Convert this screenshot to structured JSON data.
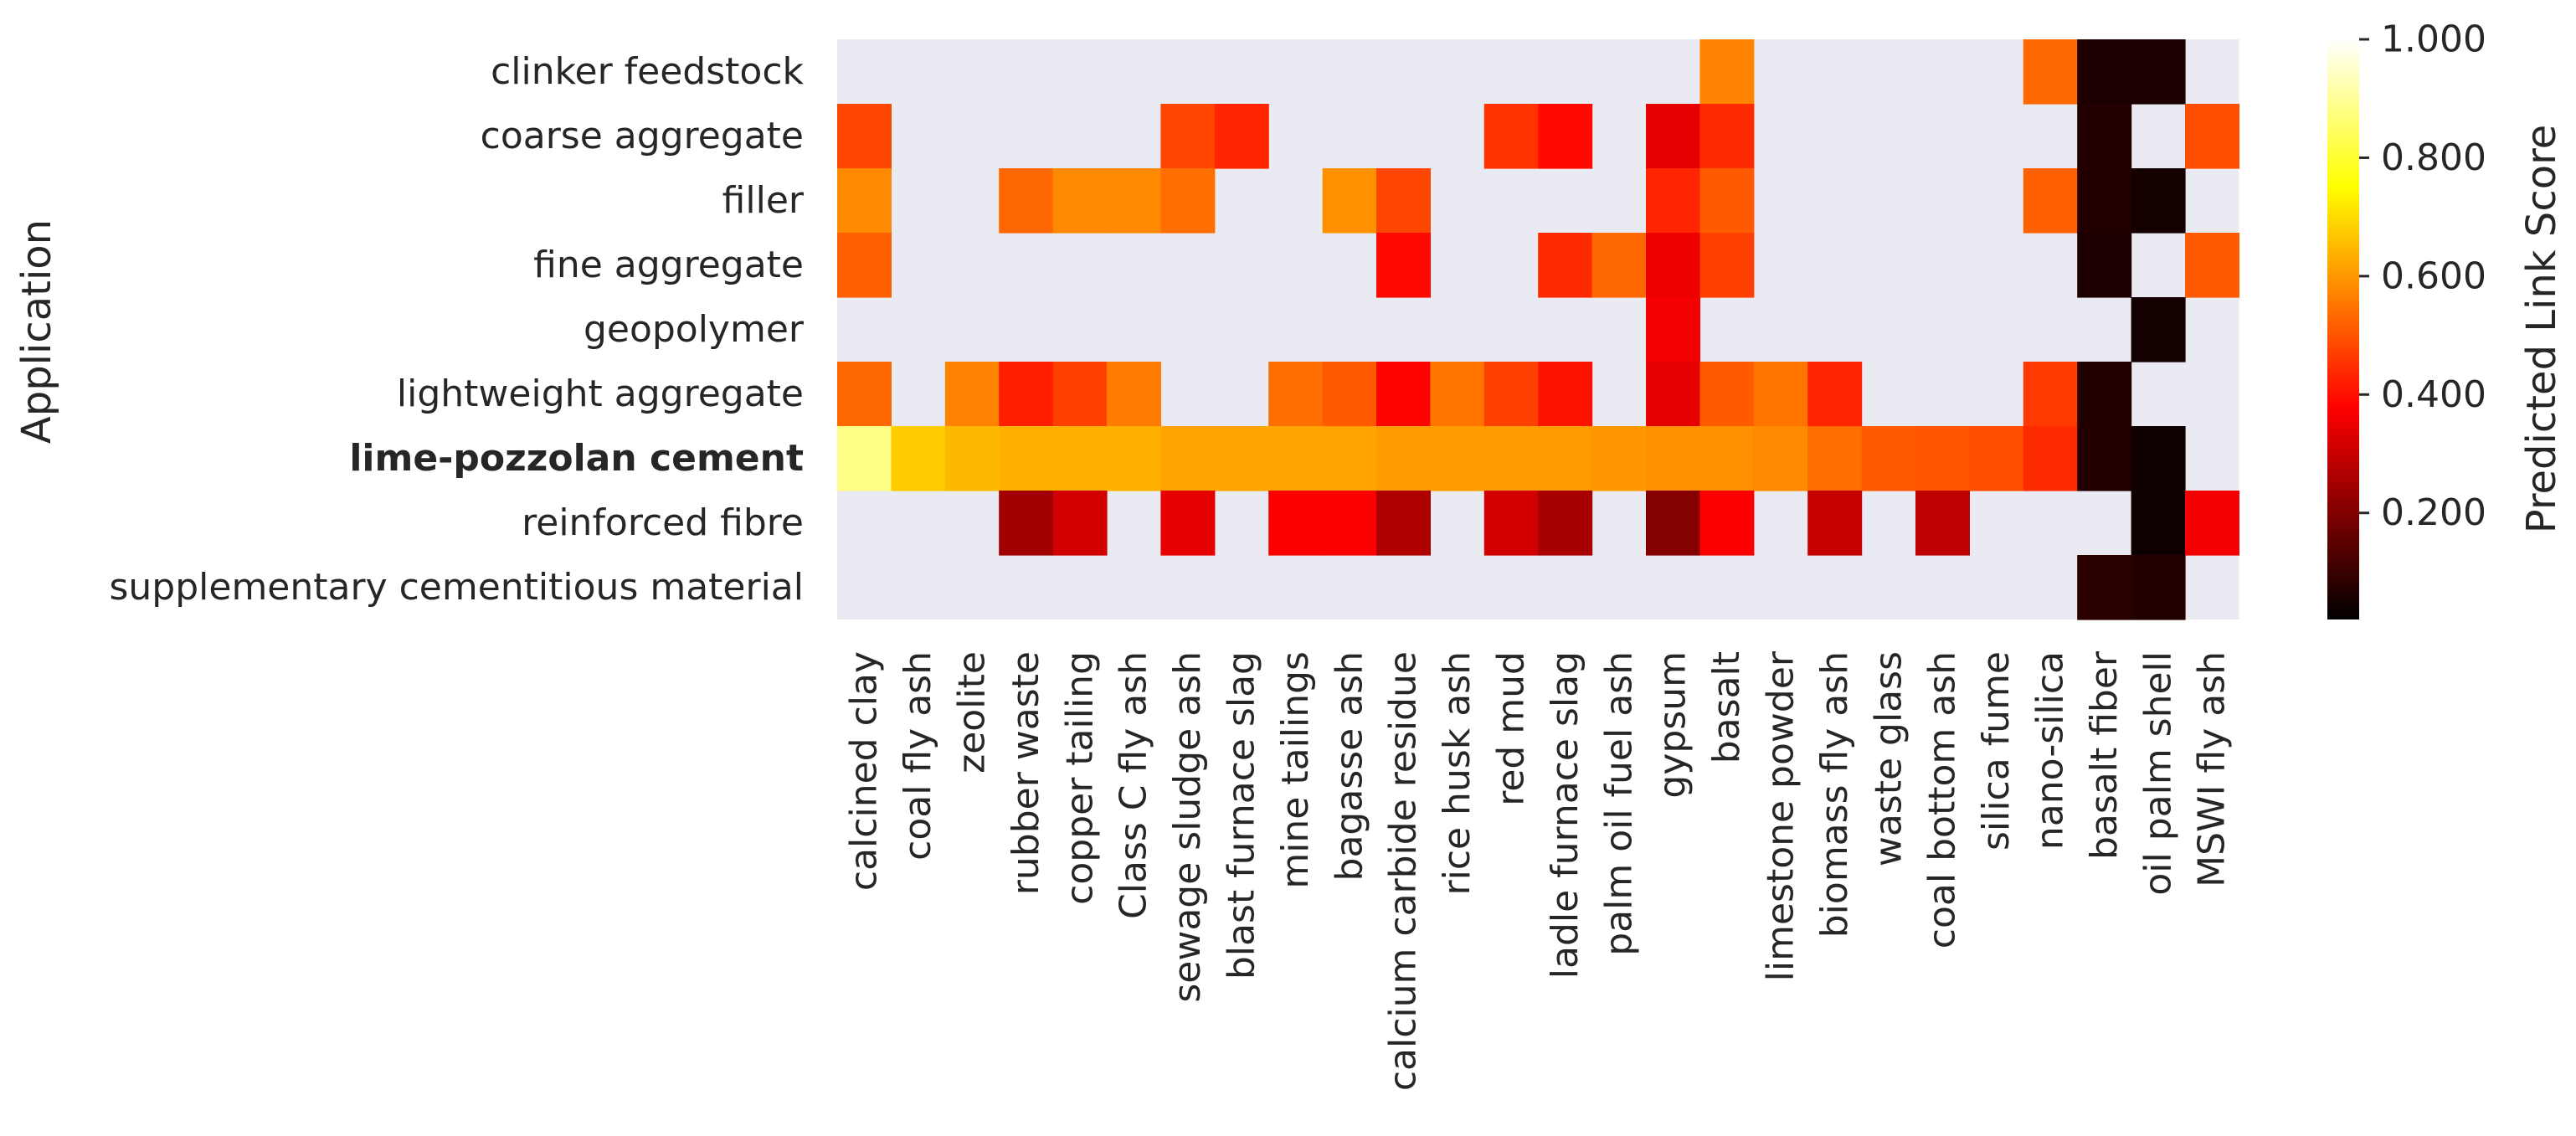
{
  "chart_data": {
    "type": "heatmap",
    "ylabel": "Application",
    "xlabel": "",
    "highlighted_row": "lime-pozzolan cement",
    "colormap": "hot",
    "missing_color": "#eaeaf2",
    "x_categories": [
      "calcined clay",
      "coal fly ash",
      "zeolite",
      "rubber waste",
      "copper tailing",
      "Class C fly ash",
      "sewage sludge ash",
      "blast furnace slag",
      "mine tailings",
      "bagasse ash",
      "calcium carbide residue",
      "rice husk ash",
      "red mud",
      "ladle furnace slag",
      "palm oil fuel ash",
      "gypsum",
      "basalt",
      "limestone powder",
      "biomass fly ash",
      "waste glass",
      "coal bottom ash",
      "silica fume",
      "nano-silica",
      "basalt fiber",
      "oil palm shell",
      "MSWI fly ash"
    ],
    "y_categories": [
      "clinker feedstock",
      "coarse aggregate",
      "filler",
      "fine aggregate",
      "geopolymer",
      "lightweight aggregate",
      "lime-pozzolan cement",
      "reinforced fibre",
      "supplementary cementitious material"
    ],
    "values": [
      [
        null,
        null,
        null,
        null,
        null,
        null,
        null,
        null,
        null,
        null,
        null,
        null,
        null,
        null,
        null,
        null,
        0.56,
        null,
        null,
        null,
        null,
        null,
        0.52,
        0.04,
        0.04,
        null
      ],
      [
        0.47,
        null,
        null,
        null,
        null,
        null,
        0.47,
        0.42,
        null,
        null,
        null,
        null,
        0.44,
        0.38,
        null,
        0.33,
        0.43,
        null,
        null,
        null,
        null,
        null,
        null,
        0.05,
        null,
        0.48
      ],
      [
        0.57,
        null,
        null,
        0.52,
        0.57,
        0.57,
        0.53,
        null,
        null,
        0.58,
        0.47,
        null,
        null,
        null,
        null,
        0.42,
        0.5,
        null,
        null,
        null,
        null,
        null,
        0.51,
        0.05,
        0.03,
        null
      ],
      [
        0.51,
        null,
        null,
        null,
        null,
        null,
        null,
        null,
        null,
        null,
        0.38,
        null,
        null,
        0.43,
        0.52,
        0.34,
        0.46,
        null,
        null,
        null,
        null,
        null,
        null,
        0.04,
        null,
        0.5
      ],
      [
        null,
        null,
        null,
        null,
        null,
        null,
        null,
        null,
        null,
        null,
        null,
        null,
        null,
        null,
        null,
        0.35,
        null,
        null,
        null,
        null,
        null,
        null,
        null,
        null,
        0.03,
        null
      ],
      [
        0.52,
        null,
        0.56,
        0.41,
        0.46,
        0.55,
        null,
        null,
        0.53,
        0.5,
        0.37,
        0.54,
        0.46,
        0.39,
        null,
        0.33,
        0.5,
        0.54,
        0.42,
        null,
        null,
        null,
        0.45,
        0.05,
        null,
        null
      ],
      [
        0.88,
        0.67,
        0.64,
        0.63,
        0.63,
        0.63,
        0.61,
        0.61,
        0.61,
        0.61,
        0.6,
        0.6,
        0.6,
        0.6,
        0.59,
        0.58,
        0.58,
        0.57,
        0.53,
        0.5,
        0.49,
        0.48,
        0.43,
        0.05,
        0.02,
        null
      ],
      [
        null,
        null,
        null,
        0.23,
        0.3,
        null,
        0.33,
        null,
        0.36,
        0.36,
        0.25,
        null,
        0.3,
        0.24,
        null,
        0.19,
        0.36,
        null,
        0.28,
        null,
        0.27,
        null,
        null,
        null,
        0.02,
        0.35
      ],
      [
        null,
        null,
        null,
        null,
        null,
        null,
        null,
        null,
        null,
        null,
        null,
        null,
        null,
        null,
        null,
        null,
        null,
        null,
        null,
        null,
        null,
        null,
        null,
        0.06,
        0.05,
        null
      ]
    ],
    "colorbar": {
      "label": "Predicted Link Score",
      "range": [
        0.02,
        1.0
      ],
      "ticks": [
        0.2,
        0.4,
        0.6,
        0.8,
        1.0
      ],
      "tick_labels": [
        "0.200",
        "0.400",
        "0.600",
        "0.800",
        "1.000"
      ]
    }
  }
}
